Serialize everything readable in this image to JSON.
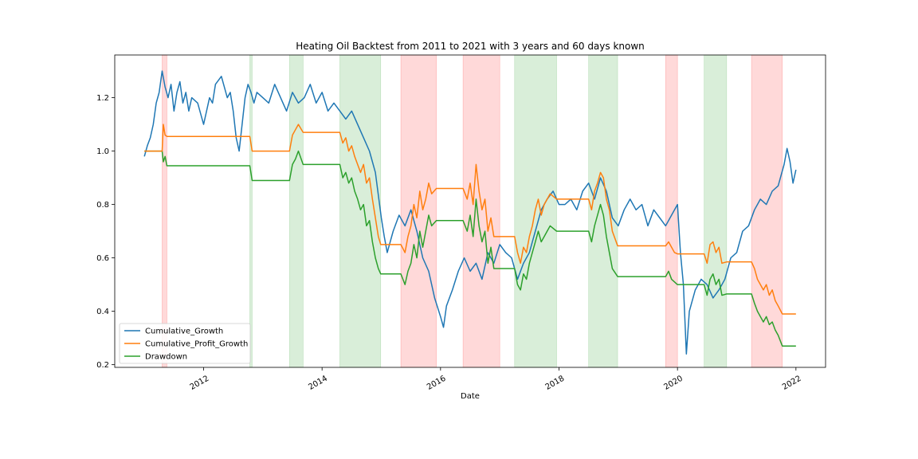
{
  "chart_data": {
    "type": "line",
    "title": "Heating Oil Backtest from 2011 to 2021 with 3 years and 60 days known",
    "xlabel": "Date",
    "ylabel": "",
    "xlim": [
      2010.5,
      2022.5
    ],
    "ylim": [
      0.19,
      1.36
    ],
    "x_ticks": [
      2012,
      2014,
      2016,
      2018,
      2020,
      2022
    ],
    "x_tick_labels": [
      "2012",
      "2014",
      "2016",
      "2018",
      "2020",
      "2022"
    ],
    "y_ticks": [
      0.2,
      0.4,
      0.6,
      0.8,
      1.0,
      1.2
    ],
    "y_tick_labels": [
      "0.2",
      "0.4",
      "0.6",
      "0.8",
      "1.0",
      "1.2"
    ],
    "grid": false,
    "legend_position": "lower-left",
    "colors": {
      "Cumulative_Growth": "#1f77b4",
      "Cumulative_Profit_Growth": "#ff7f0e",
      "Drawdown": "#2ca02c",
      "long_span": "#2ca02c",
      "short_span": "#ff0000"
    },
    "spans": [
      {
        "start": 2011.3,
        "end": 2011.38,
        "kind": "short"
      },
      {
        "start": 2012.78,
        "end": 2012.82,
        "kind": "long"
      },
      {
        "start": 2013.45,
        "end": 2013.68,
        "kind": "long"
      },
      {
        "start": 2014.3,
        "end": 2014.99,
        "kind": "long"
      },
      {
        "start": 2015.33,
        "end": 2015.93,
        "kind": "short"
      },
      {
        "start": 2016.38,
        "end": 2017.0,
        "kind": "short"
      },
      {
        "start": 2017.25,
        "end": 2017.96,
        "kind": "long"
      },
      {
        "start": 2018.5,
        "end": 2018.99,
        "kind": "long"
      },
      {
        "start": 2019.8,
        "end": 2020.0,
        "kind": "short"
      },
      {
        "start": 2020.45,
        "end": 2020.83,
        "kind": "long"
      },
      {
        "start": 2021.25,
        "end": 2021.77,
        "kind": "short"
      }
    ],
    "series": [
      {
        "name": "Cumulative_Growth",
        "x": [
          2011.0,
          2011.05,
          2011.1,
          2011.15,
          2011.2,
          2011.25,
          2011.3,
          2011.35,
          2011.4,
          2011.45,
          2011.5,
          2011.55,
          2011.6,
          2011.65,
          2011.7,
          2011.75,
          2011.8,
          2011.9,
          2012.0,
          2012.1,
          2012.15,
          2012.2,
          2012.3,
          2012.4,
          2012.45,
          2012.5,
          2012.55,
          2012.6,
          2012.65,
          2012.7,
          2012.75,
          2012.8,
          2012.85,
          2012.9,
          2013.0,
          2013.1,
          2013.2,
          2013.3,
          2013.4,
          2013.5,
          2013.6,
          2013.7,
          2013.8,
          2013.9,
          2014.0,
          2014.1,
          2014.2,
          2014.3,
          2014.4,
          2014.5,
          2014.6,
          2014.7,
          2014.8,
          2014.9,
          2015.0,
          2015.05,
          2015.1,
          2015.2,
          2015.3,
          2015.4,
          2015.5,
          2015.6,
          2015.7,
          2015.8,
          2015.9,
          2016.0,
          2016.05,
          2016.1,
          2016.2,
          2016.3,
          2016.4,
          2016.5,
          2016.6,
          2016.7,
          2016.8,
          2016.9,
          2017.0,
          2017.1,
          2017.2,
          2017.3,
          2017.4,
          2017.5,
          2017.6,
          2017.7,
          2017.8,
          2017.9,
          2018.0,
          2018.1,
          2018.2,
          2018.3,
          2018.4,
          2018.5,
          2018.6,
          2018.7,
          2018.8,
          2018.9,
          2019.0,
          2019.1,
          2019.2,
          2019.3,
          2019.4,
          2019.5,
          2019.6,
          2019.7,
          2019.8,
          2019.9,
          2020.0,
          2020.05,
          2020.1,
          2020.15,
          2020.2,
          2020.3,
          2020.4,
          2020.5,
          2020.6,
          2020.7,
          2020.8,
          2020.9,
          2021.0,
          2021.1,
          2021.2,
          2021.3,
          2021.4,
          2021.5,
          2021.6,
          2021.7,
          2021.8,
          2021.85,
          2021.9,
          2021.95,
          2022.0
        ],
        "values": [
          0.98,
          1.02,
          1.05,
          1.1,
          1.18,
          1.22,
          1.3,
          1.24,
          1.2,
          1.25,
          1.15,
          1.22,
          1.26,
          1.18,
          1.22,
          1.15,
          1.2,
          1.18,
          1.1,
          1.2,
          1.18,
          1.25,
          1.28,
          1.2,
          1.22,
          1.15,
          1.05,
          1.0,
          1.1,
          1.2,
          1.25,
          1.22,
          1.18,
          1.22,
          1.2,
          1.18,
          1.25,
          1.2,
          1.15,
          1.22,
          1.18,
          1.2,
          1.25,
          1.18,
          1.22,
          1.15,
          1.18,
          1.15,
          1.12,
          1.15,
          1.1,
          1.05,
          1.0,
          0.92,
          0.75,
          0.68,
          0.62,
          0.7,
          0.76,
          0.72,
          0.78,
          0.7,
          0.6,
          0.55,
          0.45,
          0.38,
          0.34,
          0.42,
          0.48,
          0.55,
          0.6,
          0.55,
          0.58,
          0.52,
          0.62,
          0.58,
          0.65,
          0.62,
          0.6,
          0.52,
          0.58,
          0.62,
          0.7,
          0.78,
          0.82,
          0.85,
          0.8,
          0.8,
          0.82,
          0.78,
          0.85,
          0.88,
          0.82,
          0.9,
          0.85,
          0.75,
          0.72,
          0.78,
          0.82,
          0.78,
          0.8,
          0.72,
          0.78,
          0.75,
          0.72,
          0.76,
          0.8,
          0.62,
          0.5,
          0.24,
          0.4,
          0.48,
          0.52,
          0.5,
          0.45,
          0.48,
          0.52,
          0.6,
          0.62,
          0.7,
          0.72,
          0.78,
          0.82,
          0.8,
          0.85,
          0.87,
          0.95,
          1.01,
          0.96,
          0.88,
          0.93
        ]
      },
      {
        "name": "Cumulative_Profit_Growth",
        "x": [
          2011.0,
          2011.3,
          2011.32,
          2011.35,
          2011.38,
          2012.78,
          2012.82,
          2013.45,
          2013.5,
          2013.55,
          2013.6,
          2013.68,
          2014.3,
          2014.35,
          2014.4,
          2014.45,
          2014.5,
          2014.55,
          2014.6,
          2014.65,
          2014.7,
          2014.75,
          2014.8,
          2014.85,
          2014.9,
          2014.95,
          2014.99,
          2015.33,
          2015.4,
          2015.45,
          2015.5,
          2015.55,
          2015.6,
          2015.65,
          2015.7,
          2015.75,
          2015.8,
          2015.85,
          2015.93,
          2016.38,
          2016.45,
          2016.5,
          2016.55,
          2016.6,
          2016.65,
          2016.7,
          2016.75,
          2016.8,
          2016.85,
          2016.9,
          2017.0,
          2017.25,
          2017.3,
          2017.35,
          2017.4,
          2017.45,
          2017.5,
          2017.55,
          2017.6,
          2017.65,
          2017.7,
          2017.75,
          2017.8,
          2017.85,
          2017.96,
          2018.5,
          2018.55,
          2018.6,
          2018.65,
          2018.7,
          2018.75,
          2018.8,
          2018.85,
          2018.9,
          2018.99,
          2019.8,
          2019.85,
          2019.9,
          2019.95,
          2020.0,
          2020.45,
          2020.5,
          2020.55,
          2020.6,
          2020.65,
          2020.7,
          2020.75,
          2020.83,
          2021.25,
          2021.3,
          2021.35,
          2021.4,
          2021.45,
          2021.5,
          2021.55,
          2021.6,
          2021.65,
          2021.7,
          2021.77,
          2022.0
        ],
        "values": [
          1.0,
          1.0,
          1.1,
          1.06,
          1.055,
          1.055,
          1.0,
          1.0,
          1.06,
          1.08,
          1.1,
          1.07,
          1.07,
          1.03,
          1.05,
          1.0,
          1.02,
          0.98,
          0.95,
          0.92,
          0.95,
          0.88,
          0.9,
          0.82,
          0.75,
          0.68,
          0.65,
          0.65,
          0.62,
          0.68,
          0.72,
          0.8,
          0.75,
          0.85,
          0.78,
          0.82,
          0.88,
          0.84,
          0.86,
          0.86,
          0.82,
          0.88,
          0.8,
          0.95,
          0.85,
          0.78,
          0.82,
          0.7,
          0.75,
          0.68,
          0.68,
          0.68,
          0.62,
          0.58,
          0.64,
          0.62,
          0.68,
          0.72,
          0.78,
          0.82,
          0.76,
          0.8,
          0.82,
          0.84,
          0.82,
          0.82,
          0.78,
          0.85,
          0.88,
          0.92,
          0.9,
          0.82,
          0.78,
          0.7,
          0.645,
          0.645,
          0.66,
          0.64,
          0.62,
          0.615,
          0.615,
          0.58,
          0.65,
          0.66,
          0.62,
          0.64,
          0.58,
          0.585,
          0.585,
          0.56,
          0.52,
          0.5,
          0.48,
          0.5,
          0.46,
          0.48,
          0.44,
          0.42,
          0.39,
          0.39
        ]
      },
      {
        "name": "Drawdown",
        "x": [
          2011.0,
          2011.3,
          2011.32,
          2011.35,
          2011.38,
          2012.78,
          2012.82,
          2013.45,
          2013.5,
          2013.55,
          2013.6,
          2013.68,
          2014.3,
          2014.35,
          2014.4,
          2014.45,
          2014.5,
          2014.55,
          2014.6,
          2014.65,
          2014.7,
          2014.75,
          2014.8,
          2014.85,
          2014.9,
          2014.95,
          2014.99,
          2015.33,
          2015.4,
          2015.45,
          2015.5,
          2015.55,
          2015.6,
          2015.65,
          2015.7,
          2015.75,
          2015.8,
          2015.85,
          2015.93,
          2016.38,
          2016.45,
          2016.5,
          2016.55,
          2016.6,
          2016.65,
          2016.7,
          2016.75,
          2016.8,
          2016.85,
          2016.9,
          2017.0,
          2017.25,
          2017.3,
          2017.35,
          2017.4,
          2017.45,
          2017.5,
          2017.55,
          2017.6,
          2017.65,
          2017.7,
          2017.75,
          2017.8,
          2017.85,
          2017.96,
          2018.5,
          2018.55,
          2018.6,
          2018.65,
          2018.7,
          2018.75,
          2018.8,
          2018.85,
          2018.9,
          2018.99,
          2019.8,
          2019.85,
          2019.9,
          2019.95,
          2020.0,
          2020.45,
          2020.5,
          2020.55,
          2020.6,
          2020.65,
          2020.7,
          2020.75,
          2020.83,
          2021.25,
          2021.3,
          2021.35,
          2021.4,
          2021.45,
          2021.5,
          2021.55,
          2021.6,
          2021.65,
          2021.7,
          2021.77,
          2022.0
        ],
        "values": [
          1.0,
          1.0,
          0.96,
          0.98,
          0.945,
          0.945,
          0.89,
          0.89,
          0.95,
          0.97,
          1.0,
          0.95,
          0.95,
          0.9,
          0.92,
          0.88,
          0.9,
          0.85,
          0.82,
          0.78,
          0.8,
          0.72,
          0.74,
          0.66,
          0.6,
          0.56,
          0.54,
          0.54,
          0.5,
          0.55,
          0.58,
          0.65,
          0.6,
          0.7,
          0.64,
          0.7,
          0.76,
          0.72,
          0.74,
          0.74,
          0.7,
          0.76,
          0.68,
          0.82,
          0.72,
          0.66,
          0.7,
          0.58,
          0.64,
          0.56,
          0.56,
          0.56,
          0.5,
          0.48,
          0.54,
          0.52,
          0.58,
          0.62,
          0.66,
          0.7,
          0.66,
          0.68,
          0.7,
          0.72,
          0.7,
          0.7,
          0.66,
          0.72,
          0.76,
          0.8,
          0.76,
          0.68,
          0.62,
          0.56,
          0.53,
          0.53,
          0.55,
          0.52,
          0.51,
          0.5,
          0.5,
          0.46,
          0.52,
          0.54,
          0.5,
          0.52,
          0.46,
          0.465,
          0.465,
          0.43,
          0.4,
          0.38,
          0.36,
          0.38,
          0.35,
          0.36,
          0.33,
          0.31,
          0.27,
          0.27
        ]
      }
    ]
  }
}
